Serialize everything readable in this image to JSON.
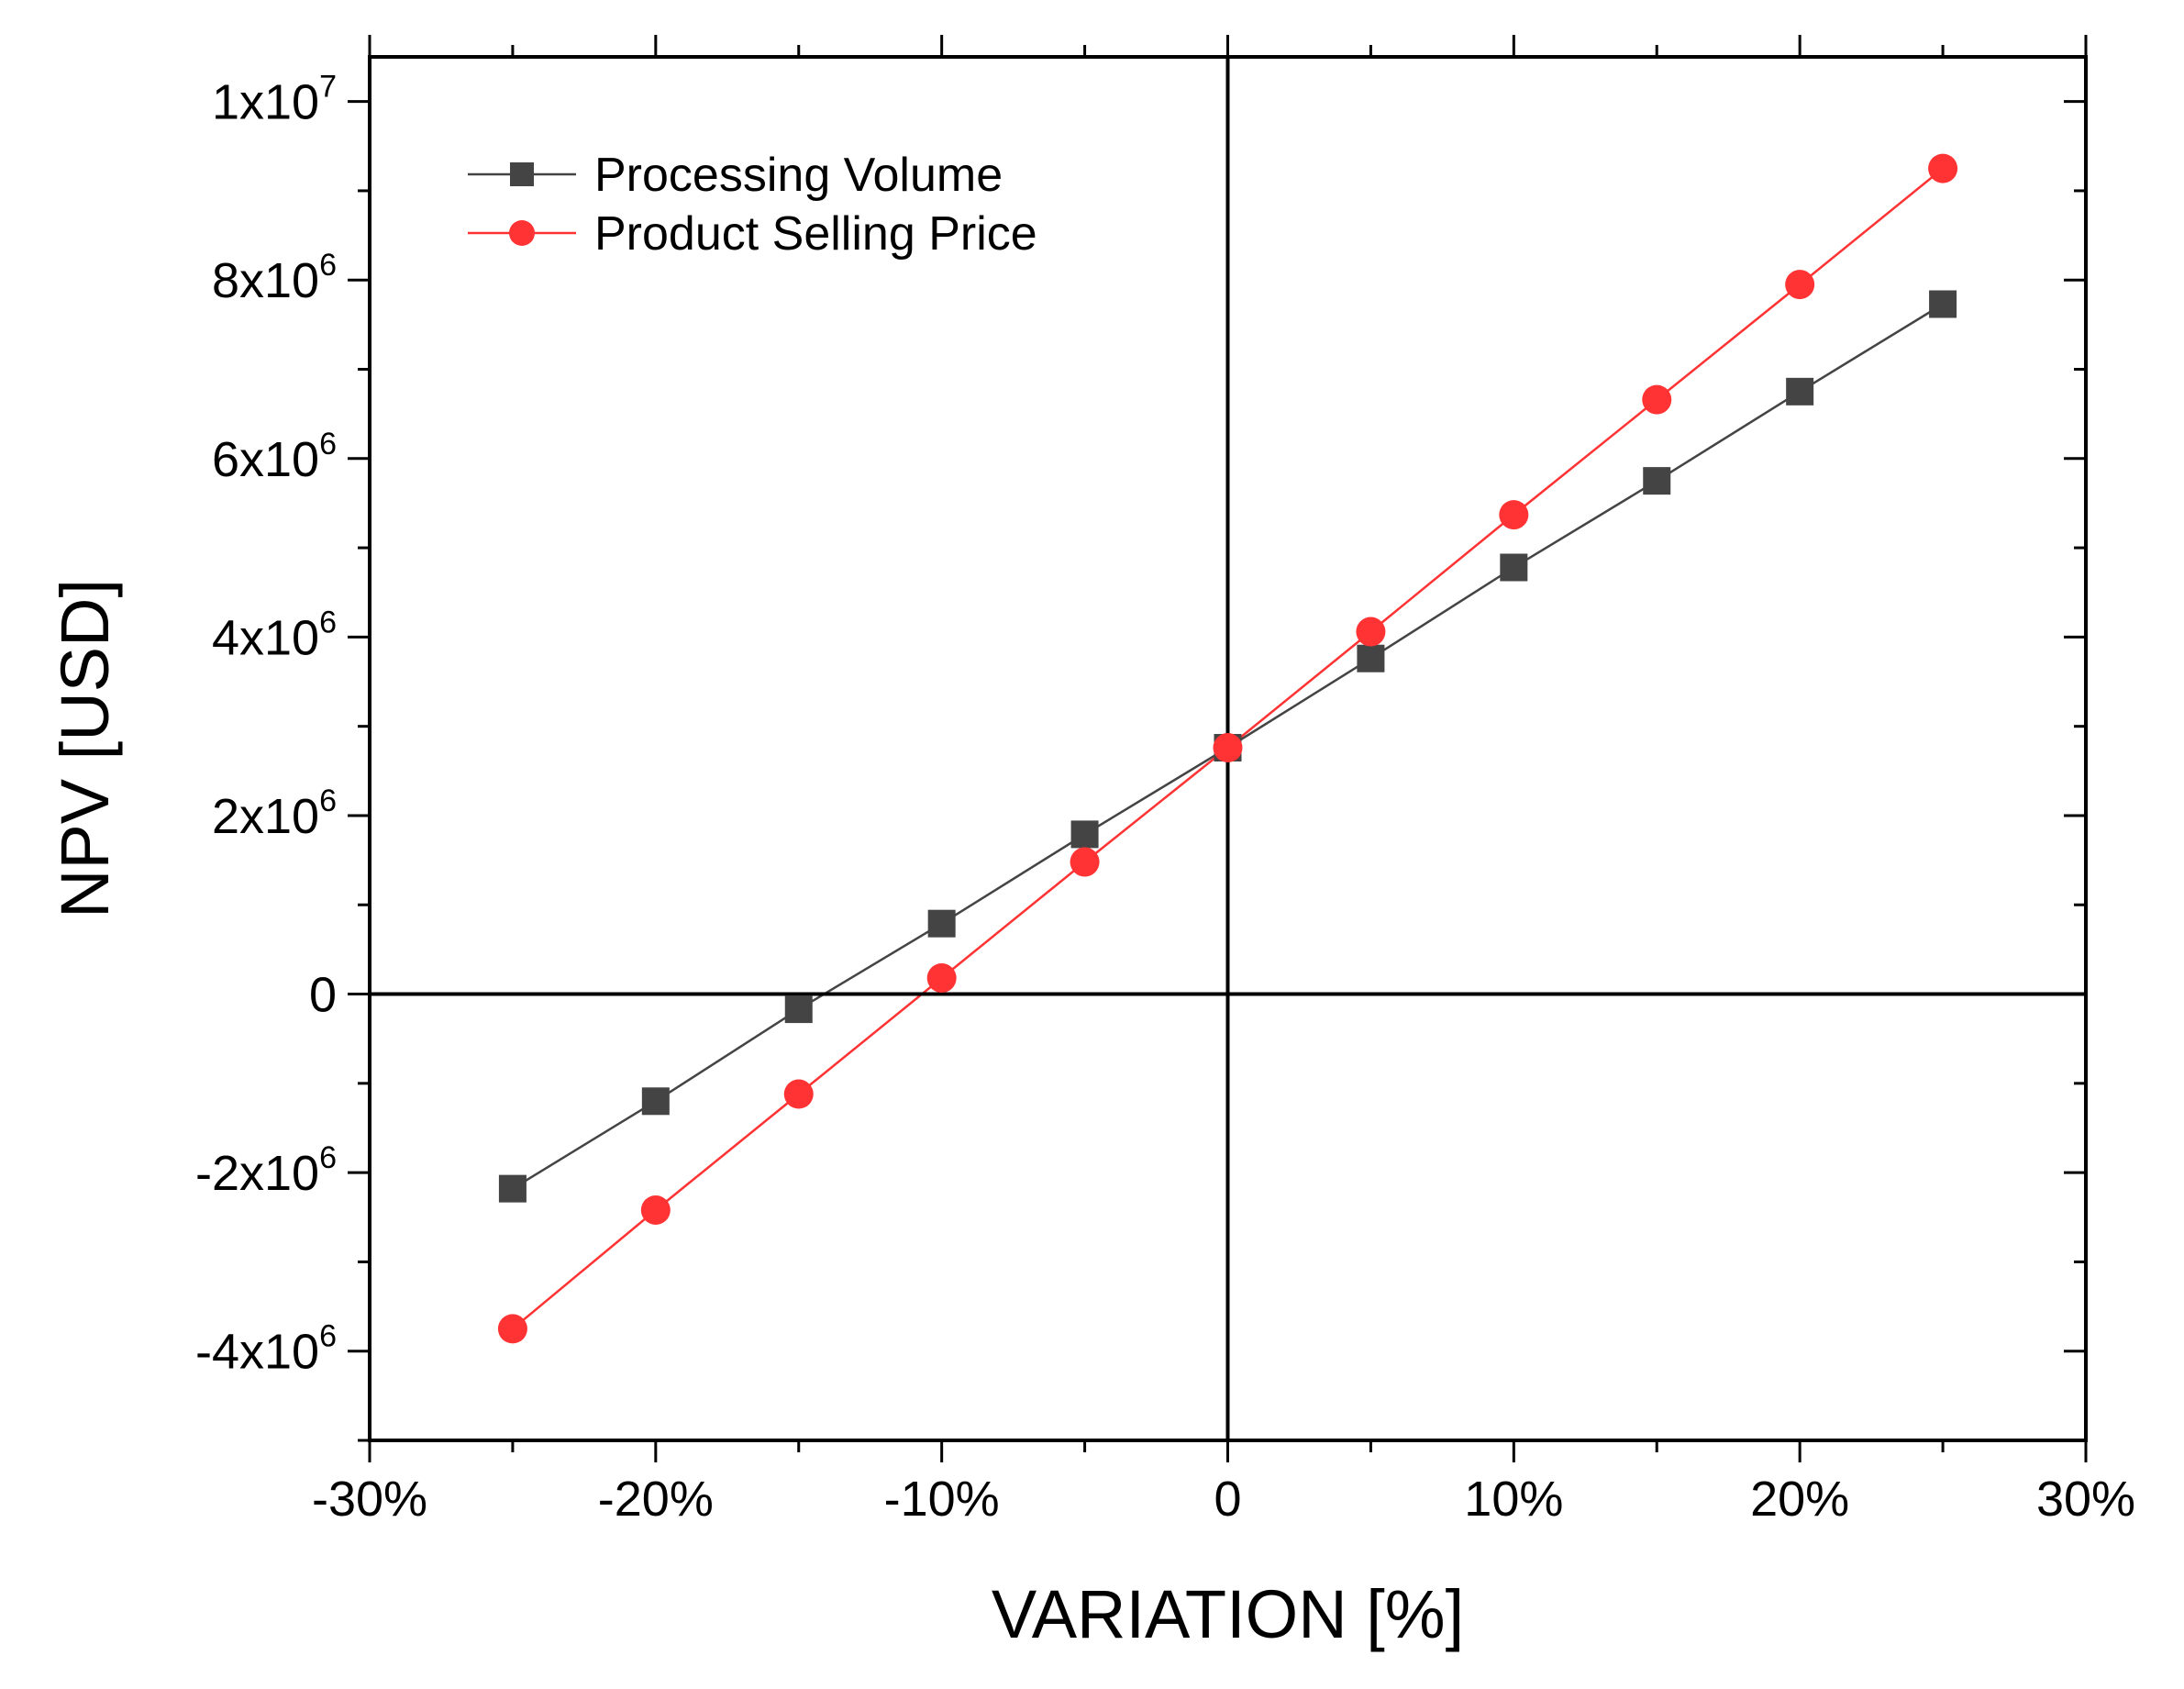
{
  "chart_data": {
    "type": "line",
    "title": "",
    "xlabel": "VARIATION [%]",
    "ylabel": "NPV [USD]",
    "xlim": [
      -30,
      30
    ],
    "ylim": [
      -5000000,
      10500000
    ],
    "x_ticks": [
      {
        "value": -30,
        "label": "-30%"
      },
      {
        "value": -20,
        "label": "-20%"
      },
      {
        "value": -10,
        "label": "-10%"
      },
      {
        "value": 0,
        "label": "0"
      },
      {
        "value": 10,
        "label": "10%"
      },
      {
        "value": 20,
        "label": "20%"
      },
      {
        "value": 30,
        "label": "30%"
      }
    ],
    "y_ticks": [
      {
        "value": -4000000,
        "mantissa": "-4x10",
        "exp": "6"
      },
      {
        "value": -2000000,
        "mantissa": "-2x10",
        "exp": "6"
      },
      {
        "value": 0,
        "mantissa": "0",
        "exp": ""
      },
      {
        "value": 2000000,
        "mantissa": "2x10",
        "exp": "6"
      },
      {
        "value": 4000000,
        "mantissa": "4x10",
        "exp": "6"
      },
      {
        "value": 6000000,
        "mantissa": "6x10",
        "exp": "6"
      },
      {
        "value": 8000000,
        "mantissa": "8x10",
        "exp": "6"
      },
      {
        "value": 10000000,
        "mantissa": "1x10",
        "exp": "7"
      }
    ],
    "x": [
      -25,
      -20,
      -15,
      -10,
      -5,
      0,
      5,
      10,
      15,
      20,
      25
    ],
    "series": [
      {
        "name": "Processing Volume",
        "color": "#444444",
        "marker": "square",
        "values": [
          -2180000,
          -1200000,
          -170000,
          790000,
          1790000,
          2760000,
          3760000,
          4780000,
          5750000,
          6750000,
          7730000
        ]
      },
      {
        "name": "Product Selling Price",
        "color": "#ff3333",
        "marker": "circle",
        "values": [
          -3750000,
          -2420000,
          -1120000,
          180000,
          1480000,
          2760000,
          4060000,
          5370000,
          6660000,
          7950000,
          9250000
        ]
      }
    ],
    "legend_position": "top-left",
    "reference_lines": {
      "x": 0,
      "y": 0
    },
    "grid": false
  }
}
